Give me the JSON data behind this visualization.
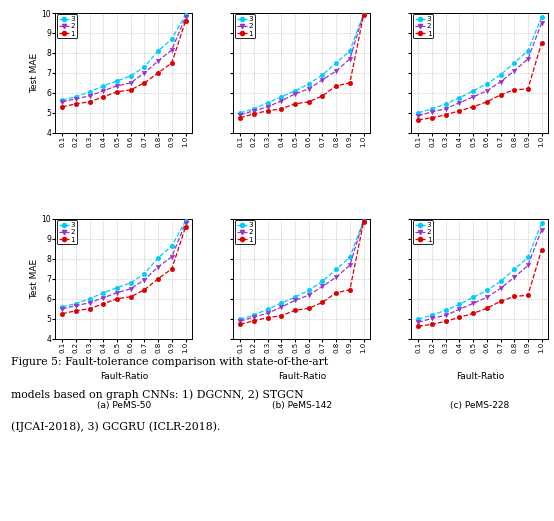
{
  "x": [
    0.1,
    0.2,
    0.3,
    0.4,
    0.5,
    0.6,
    0.7,
    0.8,
    0.9,
    1.0
  ],
  "subplots": {
    "top_left": {
      "line1": [
        5.3,
        5.45,
        5.55,
        5.8,
        6.05,
        6.15,
        6.5,
        7.0,
        7.5,
        9.6
      ],
      "line2": [
        5.55,
        5.7,
        5.85,
        6.1,
        6.35,
        6.5,
        7.0,
        7.6,
        8.15,
        9.8
      ],
      "line3": [
        5.65,
        5.8,
        6.05,
        6.35,
        6.6,
        6.85,
        7.3,
        8.1,
        8.7,
        9.9
      ]
    },
    "top_mid": {
      "line1": [
        4.75,
        4.95,
        5.1,
        5.2,
        5.45,
        5.55,
        5.85,
        6.35,
        6.5,
        9.9
      ],
      "line2": [
        4.9,
        5.1,
        5.3,
        5.6,
        5.95,
        6.2,
        6.65,
        7.1,
        7.7,
        9.95
      ],
      "line3": [
        5.0,
        5.2,
        5.5,
        5.8,
        6.1,
        6.45,
        6.9,
        7.5,
        8.1,
        9.95
      ]
    },
    "top_right": {
      "line1": [
        4.65,
        4.75,
        4.9,
        5.1,
        5.3,
        5.55,
        5.9,
        6.15,
        6.2,
        8.5
      ],
      "line2": [
        4.85,
        5.05,
        5.2,
        5.5,
        5.8,
        6.1,
        6.55,
        7.1,
        7.7,
        9.5
      ],
      "line3": [
        5.0,
        5.2,
        5.45,
        5.75,
        6.1,
        6.45,
        6.9,
        7.5,
        8.1,
        9.8
      ]
    },
    "bot_left": {
      "line1": [
        5.25,
        5.4,
        5.5,
        5.75,
        6.0,
        6.1,
        6.45,
        7.0,
        7.5,
        9.6
      ],
      "line2": [
        5.5,
        5.65,
        5.8,
        6.05,
        6.3,
        6.5,
        6.95,
        7.6,
        8.1,
        9.8
      ],
      "line3": [
        5.6,
        5.75,
        6.0,
        6.3,
        6.55,
        6.8,
        7.25,
        8.05,
        8.65,
        9.9
      ]
    },
    "bot_mid": {
      "line1": [
        4.72,
        4.9,
        5.05,
        5.15,
        5.42,
        5.52,
        5.82,
        6.3,
        6.45,
        9.85
      ],
      "line2": [
        4.88,
        5.08,
        5.28,
        5.58,
        5.92,
        6.18,
        6.62,
        7.08,
        7.68,
        9.92
      ],
      "line3": [
        4.98,
        5.18,
        5.48,
        5.78,
        6.08,
        6.42,
        6.88,
        7.48,
        8.08,
        9.92
      ]
    },
    "bot_right": {
      "line1": [
        4.62,
        4.72,
        4.87,
        5.07,
        5.27,
        5.52,
        5.87,
        6.12,
        6.17,
        8.45
      ],
      "line2": [
        4.82,
        5.02,
        5.17,
        5.47,
        5.77,
        6.07,
        6.52,
        7.07,
        7.67,
        9.45
      ],
      "line3": [
        4.98,
        5.18,
        5.42,
        5.72,
        6.07,
        6.42,
        6.87,
        7.47,
        8.07,
        9.78
      ]
    }
  },
  "colors": {
    "line1": "#dd0000",
    "line2": "#9933cc",
    "line3": "#00ccff"
  },
  "markers": {
    "line1": "o",
    "line2": "v",
    "line3": "o"
  },
  "ylim": [
    4,
    10
  ],
  "yticks": [
    4,
    5,
    6,
    7,
    8,
    9,
    10
  ],
  "x_vals": [
    0.1,
    0.2,
    0.3,
    0.4,
    0.5,
    0.6,
    0.7,
    0.8,
    0.9,
    1.0
  ],
  "xlabel": "Fault-Ratio",
  "ylabel": "Test MAE",
  "subplot_titles": [
    "(a) PeMS-50",
    "(b) PeMS-142",
    "(c) PeMS-228"
  ],
  "caption_line1": "Figure 5: Fault-tolerance comparison with state-of-the-art",
  "caption_line2": "models based on graph CNNs: 1) DGCNN, 2) STGCN",
  "caption_line3": "(IJCAI-2018), 3) GCGRU (ICLR-2018).",
  "background_color": "#ffffff",
  "grid_color": "#aaaaaa"
}
